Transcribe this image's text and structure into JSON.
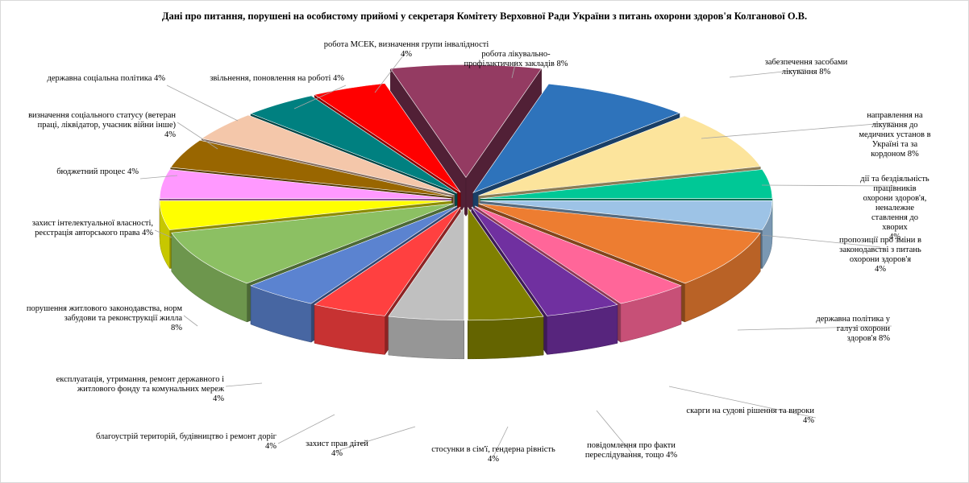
{
  "title": "Дані про питання, порушені на особистому прийомі у секретаря Комітету Верховної Ради України з питань охорони здоров'я Колганової О.В.",
  "chart_data": {
    "type": "pie",
    "title": "Дані про питання, порушені на особистому прийомі у секретаря Комітету Верховної Ради України з питань охорони здоров'я Колганової О.В.",
    "unit": "%",
    "slices": [
      {
        "label": "робота лікувально-профілактичних закладів",
        "value": 8,
        "pct_label": "8%",
        "color": "#943B62"
      },
      {
        "label": "забезпечення засобами лікування",
        "value": 8,
        "pct_label": "8%",
        "color": "#2E73BB"
      },
      {
        "label": "направлення на лікування до медичних установ в Україні та за кордоном",
        "value": 8,
        "pct_label": "8%",
        "color": "#FCE49C"
      },
      {
        "label": "дії та бездіяльність працівників охорони здоров'я, неналежне ставлення до хворих",
        "value": 4,
        "pct_label": "4%",
        "color": "#00C896"
      },
      {
        "label": "пропозиції про зміни в законодавстві з питань охорони здоров'я",
        "value": 4,
        "pct_label": "4%",
        "color": "#9DC3E6"
      },
      {
        "label": "державна політика у галузі охорони здоров'я",
        "value": 8,
        "pct_label": "8%",
        "color": "#ED7D31"
      },
      {
        "label": "скарги на судові рішення та вироки",
        "value": 4,
        "pct_label": "4%",
        "color": "#FF6699"
      },
      {
        "label": "повідомлення про факти переслідування, тощо",
        "value": 4,
        "pct_label": "4%",
        "color": "#7030A0"
      },
      {
        "label": "стосунки в сім'ї, гендерна рівність",
        "value": 4,
        "pct_label": "4%",
        "color": "#808000"
      },
      {
        "label": "захист прав дітей",
        "value": 4,
        "pct_label": "4%",
        "color": "#C0C0C0"
      },
      {
        "label": "благоустрій територій, будівництво і ремонт доріг",
        "value": 4,
        "pct_label": "4%",
        "color": "#FF4040"
      },
      {
        "label": "експлуатація, утримання, ремонт державного і житлового фонду та комунальних мереж",
        "value": 4,
        "pct_label": "4%",
        "color": "#5B83D0"
      },
      {
        "label": "порушення житлового законодавства, норм забудови та реконструкції жилла",
        "value": 8,
        "pct_label": "8%",
        "color": "#8CC063"
      },
      {
        "label": "захист інтелектуальної власності, реєстрація авторського права",
        "value": 4,
        "pct_label": "4%",
        "color": "#FFFF00"
      },
      {
        "label": "бюджетний процес",
        "value": 4,
        "pct_label": "4%",
        "color": "#FF99FF"
      },
      {
        "label": "визначення соціального статусу (ветеран праці, ліквідатор, учасник війни інше)",
        "value": 4,
        "pct_label": "4%",
        "color": "#996600"
      },
      {
        "label": "державна соціальна політика",
        "value": 4,
        "pct_label": "4%",
        "color": "#F4C7AA"
      },
      {
        "label": "звільнення, поновлення на роботі",
        "value": 4,
        "pct_label": "4%",
        "color": "#008080"
      },
      {
        "label": "робота МСЕК, визначення групи інвалідності",
        "value": 4,
        "pct_label": "4%",
        "color": "#FF0000"
      }
    ],
    "label_texts": [
      "робота лікувально-\nпрофілактичних закладів 8%",
      "забезпечення засобами\nлікування 8%",
      "направлення на лікування до медичних установ в\nУкраїні та за кордоном 8%",
      "дії та бездіяльність працівників охорони здоров'я,\nненалежне ставлення до хворих\n4%",
      "пропозиції про зміни в законодавстві з питань\nохорони здоров'я\n4%",
      "державна політика у галузі охорони\nздоров'я 8%",
      "скарги на судові рішення та вироки\n4%",
      "повідомлення про факти\nпереслідування, тощо 4%",
      "стосунки в сім'ї, гендерна рівність\n4%",
      "захист прав дітей\n4%",
      "благоустрій територій, будівництво і ремонт доріг\n4%",
      "експлуатація, утримання, ремонт державного і\nжитлового фонду та комунальних мереж\n4%",
      "порушення житлового законодавства, норм\nзабудови та реконструкції жилла\n8%",
      "захист інтелектуальної власності,\nреєстрація авторського права 4%",
      "бюджетний процес 4%",
      "визначення соціального статусу (ветеран\nпраці, ліквідатор, учасник війни інше)\n4%",
      "державна соціальна політика 4%",
      "звільнення, поновлення на роботі 4%",
      "робота МСЕК, визначення групи інвалідності\n4%"
    ],
    "style": "3d-exploded-pie"
  }
}
